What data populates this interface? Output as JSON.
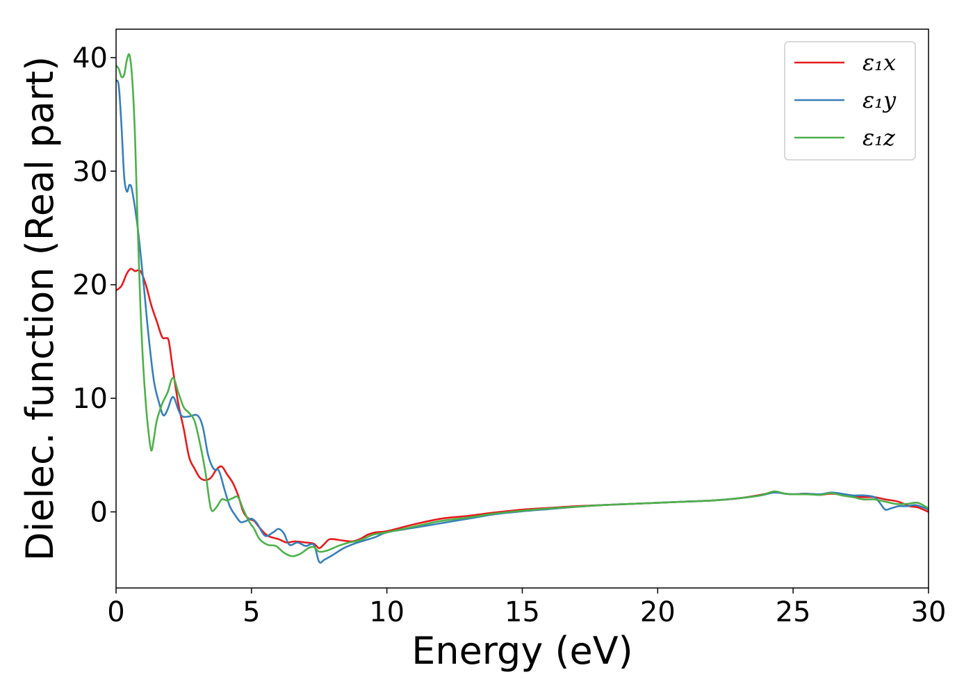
{
  "chart_data": {
    "type": "line",
    "xlabel": "Energy (eV)",
    "ylabel": "Dielec. function (Real part)",
    "xlim": [
      0,
      30
    ],
    "ylim": [
      -6.7,
      42.5
    ],
    "xticks": [
      0,
      5,
      10,
      15,
      20,
      25,
      30
    ],
    "yticks": [
      0,
      10,
      20,
      30,
      40
    ],
    "grid": false,
    "legend_position": "top-right",
    "series": [
      {
        "name": "ε₁x",
        "color": "#e41a1c",
        "points": [
          [
            0,
            19.5
          ],
          [
            0.2,
            19.9
          ],
          [
            0.4,
            21.0
          ],
          [
            0.55,
            21.4
          ],
          [
            0.7,
            21.2
          ],
          [
            0.9,
            21.2
          ],
          [
            1.1,
            20.0
          ],
          [
            1.3,
            18.2
          ],
          [
            1.5,
            16.8
          ],
          [
            1.7,
            15.4
          ],
          [
            1.85,
            15.3
          ],
          [
            1.95,
            15.0
          ],
          [
            2.1,
            12.5
          ],
          [
            2.3,
            9.5
          ],
          [
            2.5,
            7.3
          ],
          [
            2.7,
            4.8
          ],
          [
            2.9,
            3.8
          ],
          [
            3.1,
            3.0
          ],
          [
            3.3,
            2.8
          ],
          [
            3.5,
            3.0
          ],
          [
            3.7,
            3.7
          ],
          [
            3.9,
            4.0
          ],
          [
            4.1,
            3.3
          ],
          [
            4.3,
            2.6
          ],
          [
            4.5,
            1.5
          ],
          [
            4.7,
            0.0
          ],
          [
            4.9,
            -0.6
          ],
          [
            5.1,
            -0.8
          ],
          [
            5.3,
            -1.4
          ],
          [
            5.6,
            -2.1
          ],
          [
            6.0,
            -2.4
          ],
          [
            6.3,
            -2.7
          ],
          [
            6.6,
            -2.6
          ],
          [
            7.0,
            -2.7
          ],
          [
            7.3,
            -2.8
          ],
          [
            7.5,
            -3.2
          ],
          [
            7.7,
            -2.8
          ],
          [
            7.9,
            -2.4
          ],
          [
            8.3,
            -2.5
          ],
          [
            8.7,
            -2.6
          ],
          [
            9.0,
            -2.4
          ],
          [
            9.3,
            -2.0
          ],
          [
            9.6,
            -1.8
          ],
          [
            10.0,
            -1.7
          ],
          [
            11.0,
            -1.1
          ],
          [
            12.0,
            -0.6
          ],
          [
            13.0,
            -0.35
          ],
          [
            14.0,
            -0.05
          ],
          [
            15.0,
            0.2
          ],
          [
            16.0,
            0.35
          ],
          [
            17.0,
            0.5
          ],
          [
            18.0,
            0.6
          ],
          [
            19.0,
            0.7
          ],
          [
            20.0,
            0.8
          ],
          [
            21.0,
            0.9
          ],
          [
            22.0,
            1.0
          ],
          [
            23.0,
            1.2
          ],
          [
            23.8,
            1.5
          ],
          [
            24.3,
            1.75
          ],
          [
            24.7,
            1.6
          ],
          [
            25.0,
            1.55
          ],
          [
            25.5,
            1.6
          ],
          [
            26.0,
            1.5
          ],
          [
            26.4,
            1.6
          ],
          [
            26.8,
            1.5
          ],
          [
            27.2,
            1.35
          ],
          [
            27.6,
            1.3
          ],
          [
            28.0,
            1.3
          ],
          [
            28.4,
            1.1
          ],
          [
            28.8,
            0.95
          ],
          [
            29.0,
            0.8
          ],
          [
            29.3,
            0.5
          ],
          [
            29.6,
            0.4
          ],
          [
            30.0,
            0.0
          ]
        ]
      },
      {
        "name": "ε₁y",
        "color": "#377eb8",
        "points": [
          [
            0,
            38.0
          ],
          [
            0.1,
            37.5
          ],
          [
            0.2,
            34.0
          ],
          [
            0.3,
            29.5
          ],
          [
            0.4,
            28.2
          ],
          [
            0.5,
            28.8
          ],
          [
            0.6,
            28.2
          ],
          [
            0.8,
            25.0
          ],
          [
            1.0,
            20.5
          ],
          [
            1.2,
            15.5
          ],
          [
            1.4,
            11.5
          ],
          [
            1.6,
            9.5
          ],
          [
            1.75,
            8.5
          ],
          [
            1.9,
            9.0
          ],
          [
            2.05,
            10.0
          ],
          [
            2.15,
            10.0
          ],
          [
            2.3,
            9.0
          ],
          [
            2.45,
            8.4
          ],
          [
            2.7,
            8.4
          ],
          [
            3.0,
            8.5
          ],
          [
            3.2,
            7.5
          ],
          [
            3.4,
            5.0
          ],
          [
            3.6,
            3.8
          ],
          [
            3.8,
            3.6
          ],
          [
            4.0,
            2.0
          ],
          [
            4.2,
            0.5
          ],
          [
            4.4,
            -0.3
          ],
          [
            4.6,
            -0.9
          ],
          [
            4.8,
            -0.8
          ],
          [
            5.0,
            -0.6
          ],
          [
            5.2,
            -1.0
          ],
          [
            5.5,
            -2.1
          ],
          [
            5.8,
            -1.8
          ],
          [
            6.0,
            -1.5
          ],
          [
            6.2,
            -1.9
          ],
          [
            6.4,
            -2.9
          ],
          [
            6.7,
            -2.7
          ],
          [
            7.0,
            -3.0
          ],
          [
            7.3,
            -2.9
          ],
          [
            7.5,
            -4.4
          ],
          [
            7.7,
            -4.2
          ],
          [
            8.0,
            -3.8
          ],
          [
            8.4,
            -3.2
          ],
          [
            8.8,
            -2.8
          ],
          [
            9.2,
            -2.5
          ],
          [
            9.6,
            -2.2
          ],
          [
            10.0,
            -1.8
          ],
          [
            11.0,
            -1.4
          ],
          [
            12.0,
            -1.0
          ],
          [
            13.0,
            -0.6
          ],
          [
            14.0,
            -0.2
          ],
          [
            15.0,
            0.05
          ],
          [
            16.0,
            0.25
          ],
          [
            17.0,
            0.45
          ],
          [
            18.0,
            0.6
          ],
          [
            19.0,
            0.7
          ],
          [
            20.0,
            0.8
          ],
          [
            21.0,
            0.9
          ],
          [
            22.0,
            1.0
          ],
          [
            23.0,
            1.2
          ],
          [
            23.8,
            1.45
          ],
          [
            24.3,
            1.7
          ],
          [
            24.7,
            1.6
          ],
          [
            25.0,
            1.55
          ],
          [
            25.5,
            1.6
          ],
          [
            26.0,
            1.55
          ],
          [
            26.4,
            1.7
          ],
          [
            26.8,
            1.6
          ],
          [
            27.2,
            1.45
          ],
          [
            27.6,
            1.45
          ],
          [
            28.0,
            1.3
          ],
          [
            28.2,
            0.8
          ],
          [
            28.4,
            0.2
          ],
          [
            28.6,
            0.3
          ],
          [
            28.9,
            0.5
          ],
          [
            29.2,
            0.5
          ],
          [
            29.5,
            0.6
          ],
          [
            29.8,
            0.4
          ],
          [
            30.0,
            0.2
          ]
        ]
      },
      {
        "name": "ε₁z",
        "color": "#4daf4a",
        "points": [
          [
            0,
            39.3
          ],
          [
            0.1,
            39.0
          ],
          [
            0.2,
            38.3
          ],
          [
            0.3,
            38.5
          ],
          [
            0.4,
            39.8
          ],
          [
            0.5,
            40.2
          ],
          [
            0.6,
            38.0
          ],
          [
            0.7,
            33.0
          ],
          [
            0.8,
            25.0
          ],
          [
            0.9,
            18.0
          ],
          [
            1.0,
            13.0
          ],
          [
            1.1,
            9.5
          ],
          [
            1.2,
            7.0
          ],
          [
            1.3,
            5.4
          ],
          [
            1.4,
            6.5
          ],
          [
            1.5,
            8.0
          ],
          [
            1.7,
            9.5
          ],
          [
            1.9,
            10.5
          ],
          [
            2.1,
            11.8
          ],
          [
            2.3,
            10.5
          ],
          [
            2.5,
            9.2
          ],
          [
            2.7,
            8.7
          ],
          [
            2.9,
            8.0
          ],
          [
            3.1,
            6.0
          ],
          [
            3.3,
            3.5
          ],
          [
            3.5,
            0.3
          ],
          [
            3.7,
            0.4
          ],
          [
            3.9,
            1.1
          ],
          [
            4.1,
            1.0
          ],
          [
            4.3,
            1.2
          ],
          [
            4.5,
            1.3
          ],
          [
            4.7,
            0.2
          ],
          [
            4.9,
            -0.8
          ],
          [
            5.1,
            -1.5
          ],
          [
            5.3,
            -2.4
          ],
          [
            5.6,
            -2.9
          ],
          [
            5.9,
            -3.0
          ],
          [
            6.2,
            -3.6
          ],
          [
            6.5,
            -3.9
          ],
          [
            6.8,
            -3.7
          ],
          [
            7.1,
            -3.2
          ],
          [
            7.3,
            -3.1
          ],
          [
            7.5,
            -3.5
          ],
          [
            7.8,
            -3.4
          ],
          [
            8.2,
            -3.0
          ],
          [
            8.6,
            -2.7
          ],
          [
            9.0,
            -2.5
          ],
          [
            9.5,
            -2.0
          ],
          [
            10.0,
            -1.8
          ],
          [
            11.0,
            -1.3
          ],
          [
            12.0,
            -0.8
          ],
          [
            13.0,
            -0.5
          ],
          [
            14.0,
            -0.15
          ],
          [
            15.0,
            0.1
          ],
          [
            16.0,
            0.3
          ],
          [
            17.0,
            0.45
          ],
          [
            18.0,
            0.6
          ],
          [
            19.0,
            0.7
          ],
          [
            20.0,
            0.8
          ],
          [
            21.0,
            0.9
          ],
          [
            22.0,
            1.0
          ],
          [
            23.0,
            1.2
          ],
          [
            23.8,
            1.45
          ],
          [
            24.3,
            1.8
          ],
          [
            24.7,
            1.6
          ],
          [
            25.0,
            1.55
          ],
          [
            25.5,
            1.55
          ],
          [
            26.0,
            1.5
          ],
          [
            26.4,
            1.65
          ],
          [
            26.8,
            1.45
          ],
          [
            27.2,
            1.3
          ],
          [
            27.6,
            1.1
          ],
          [
            28.0,
            1.1
          ],
          [
            28.4,
            0.9
          ],
          [
            28.8,
            0.7
          ],
          [
            29.2,
            0.7
          ],
          [
            29.6,
            0.8
          ],
          [
            30.0,
            0.3
          ]
        ]
      }
    ]
  }
}
